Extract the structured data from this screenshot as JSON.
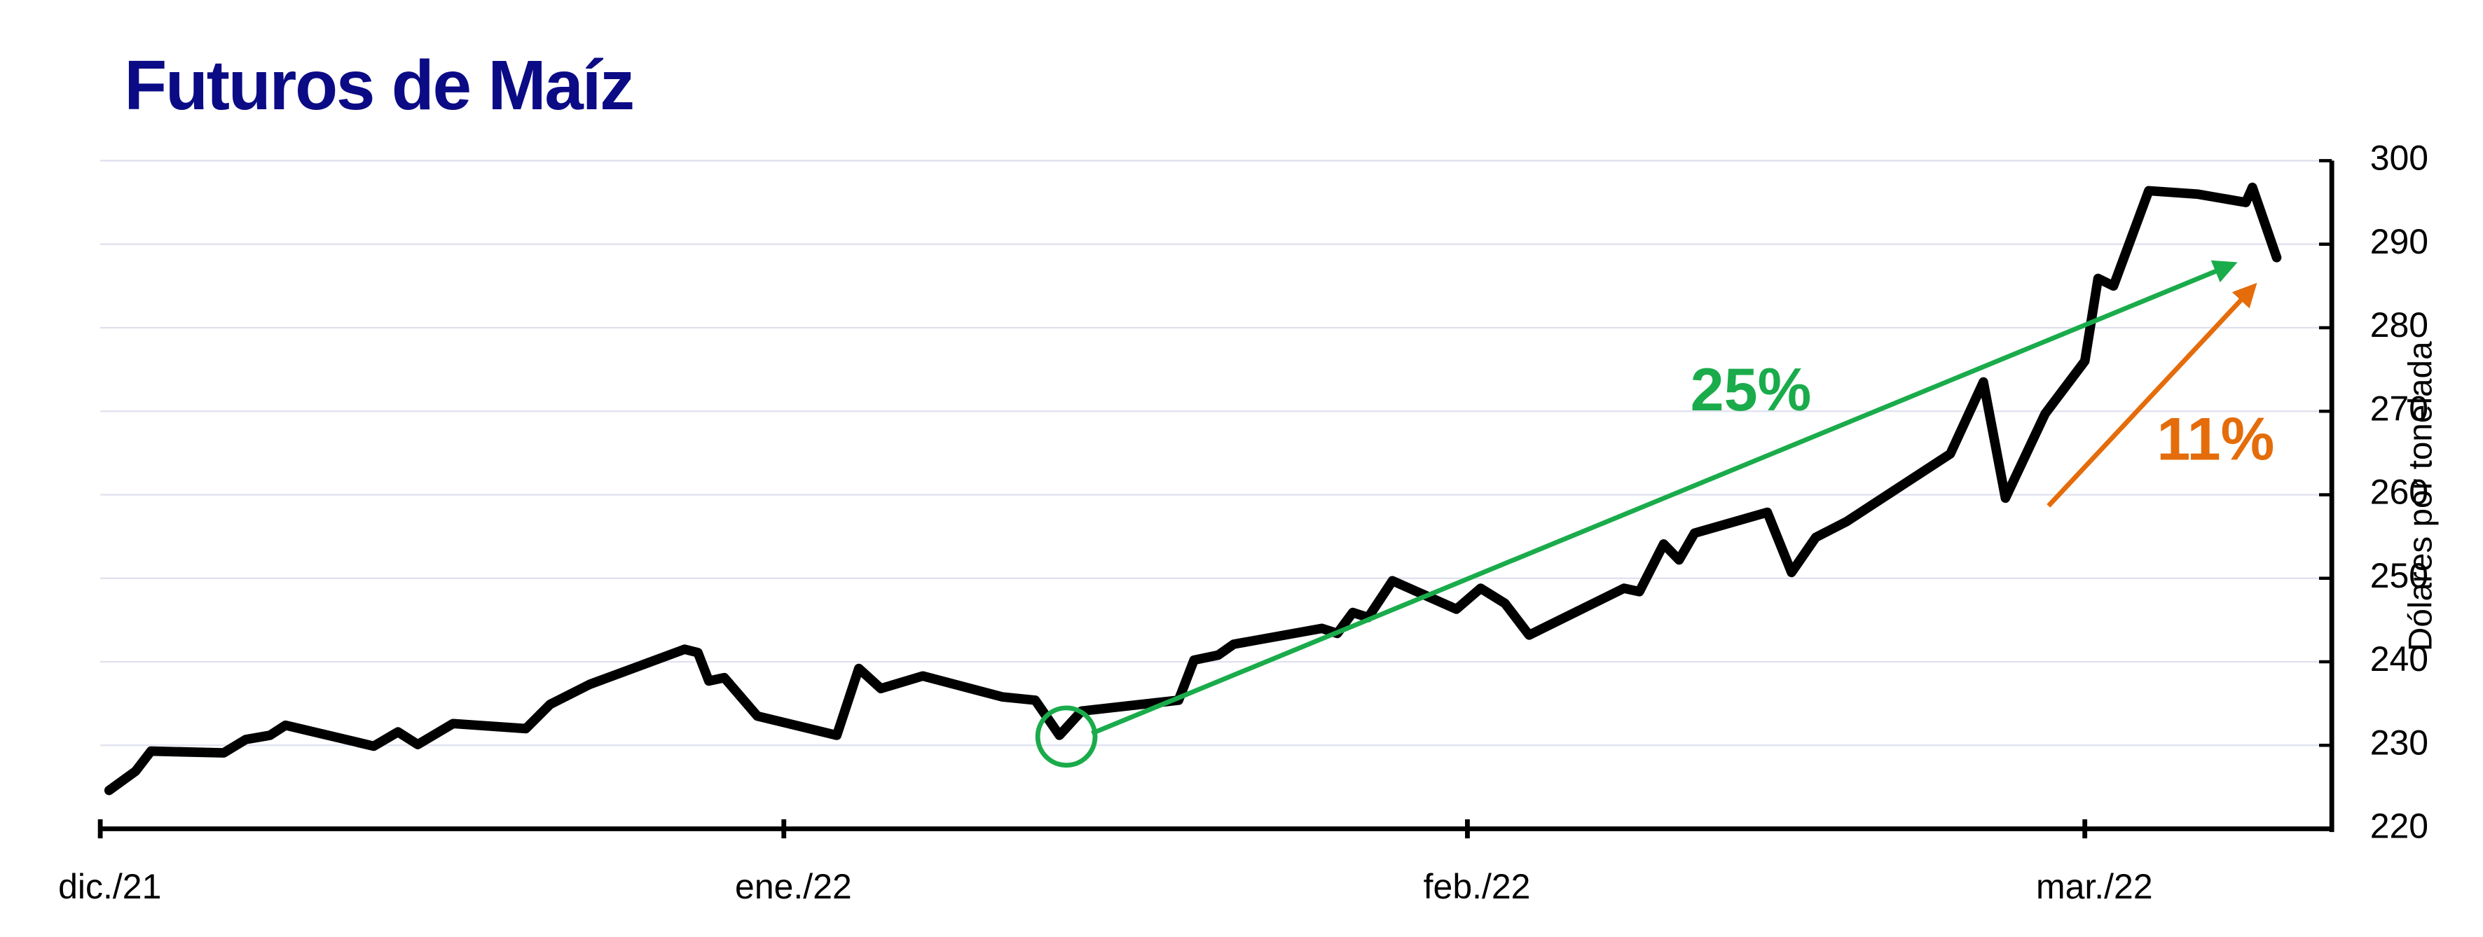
{
  "chart_data": {
    "type": "line",
    "title": "Futuros de Maíz",
    "y_axis_label": "Dólares por tonelada",
    "annotations": [
      "25%",
      "11%"
    ],
    "x": [
      0.4,
      1.6,
      2.3,
      5.6,
      6.6,
      7.7,
      8.4,
      12.4,
      13.5,
      14.4,
      16.0,
      19.3,
      20.4,
      22.2,
      26.5,
      27.1,
      27.6,
      28.3,
      29.8,
      33.4,
      34.4,
      35.4,
      37.3,
      40.9,
      42.4,
      43.5,
      44.5,
      48.9,
      49.6,
      50.7,
      51.4,
      55.4,
      56.1,
      56.8,
      57.5,
      58.6,
      61.5,
      62.6,
      63.7,
      64.8,
      69.1,
      69.8,
      70.9,
      71.6,
      72.3,
      75.6,
      76.7,
      77.8,
      79.2,
      83.9,
      85.4,
      86.4,
      88.2,
      90.0,
      90.6,
      91.3,
      92.9,
      95.1,
      97.3,
      97.6,
      98.7
    ],
    "series": [
      {
        "name": "Futuros de Maíz",
        "color": "#000000",
        "values": [
          224.6,
          226.9,
          229.3,
          229.1,
          230.7,
          231.2,
          232.4,
          229.9,
          231.6,
          230.1,
          232.6,
          232.0,
          234.9,
          237.3,
          241.5,
          241.1,
          237.7,
          238.1,
          233.5,
          231.2,
          239.2,
          236.8,
          238.3,
          235.8,
          235.4,
          231.2,
          234.1,
          235.4,
          240.2,
          240.8,
          242.1,
          244.0,
          243.4,
          245.9,
          245.3,
          249.7,
          246.3,
          248.8,
          247.0,
          243.2,
          248.8,
          248.4,
          254.1,
          252.2,
          255.4,
          257.9,
          250.7,
          254.9,
          256.8,
          264.9,
          273.5,
          259.6,
          269.7,
          276.0,
          285.9,
          285.0,
          296.4,
          296.0,
          295.0,
          296.8,
          288.4
        ]
      }
    ],
    "xlim": [
      0,
      101.2
    ],
    "xticks": [
      {
        "value": 0,
        "label": "dic./21"
      },
      {
        "value": 31,
        "label": "ene./22"
      },
      {
        "value": 62,
        "label": "feb./22"
      },
      {
        "value": 90,
        "label": "mar./22"
      }
    ],
    "ylim": [
      220,
      300
    ],
    "yticks": [
      220,
      230,
      240,
      250,
      260,
      270,
      280,
      290,
      300
    ],
    "grid": true
  }
}
